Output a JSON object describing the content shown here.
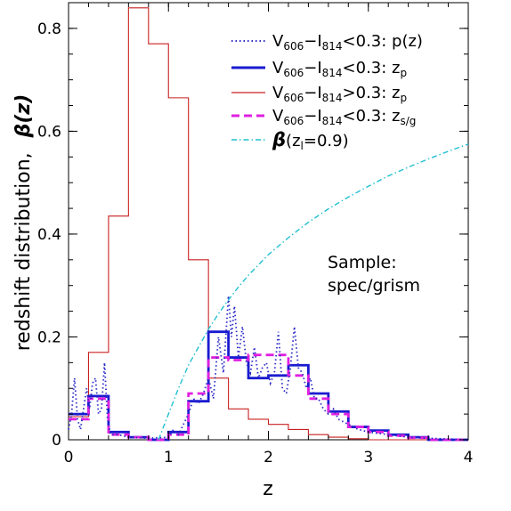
{
  "chart_data": {
    "type": "line",
    "xlabel": "z",
    "ylabel_text": "redshift distribution,",
    "ylabel_symbol": "β(z)",
    "xlim": [
      0,
      4
    ],
    "ylim": [
      0,
      0.85
    ],
    "x_ticks": [
      "0",
      "1",
      "2",
      "3",
      "4"
    ],
    "y_ticks": [
      "0",
      "0.2",
      "0.4",
      "0.6",
      "0.8"
    ],
    "x_tick_values": [
      0,
      1,
      2,
      3,
      4
    ],
    "y_tick_values": [
      0,
      0.2,
      0.4,
      0.6,
      0.8
    ],
    "grid": false,
    "legend_position": "top-right",
    "annotation": [
      "Sample:",
      "spec/grism"
    ],
    "series": [
      {
        "legend_main": "V606−I814<0.3:",
        "legend_var": "p(z)",
        "color": "#2a2ac8",
        "style": "dotted",
        "kind": "line",
        "points": [
          [
            0.0,
            0.02
          ],
          [
            0.03,
            0.05
          ],
          [
            0.06,
            0.12
          ],
          [
            0.09,
            0.04
          ],
          [
            0.12,
            0.02
          ],
          [
            0.15,
            0.06
          ],
          [
            0.18,
            0.1
          ],
          [
            0.21,
            0.06
          ],
          [
            0.24,
            0.11
          ],
          [
            0.27,
            0.12
          ],
          [
            0.3,
            0.05
          ],
          [
            0.33,
            0.06
          ],
          [
            0.36,
            0.15
          ],
          [
            0.39,
            0.04
          ],
          [
            0.42,
            0.01
          ],
          [
            0.5,
            0.01
          ],
          [
            0.6,
            0.005
          ],
          [
            0.8,
            0.003
          ],
          [
            1.0,
            0.005
          ],
          [
            1.05,
            0.02
          ],
          [
            1.1,
            0.01
          ],
          [
            1.15,
            0.03
          ],
          [
            1.2,
            0.05
          ],
          [
            1.25,
            0.08
          ],
          [
            1.3,
            0.07
          ],
          [
            1.35,
            0.09
          ],
          [
            1.4,
            0.12
          ],
          [
            1.45,
            0.08
          ],
          [
            1.5,
            0.2
          ],
          [
            1.55,
            0.13
          ],
          [
            1.6,
            0.28
          ],
          [
            1.63,
            0.2
          ],
          [
            1.66,
            0.26
          ],
          [
            1.7,
            0.16
          ],
          [
            1.74,
            0.22
          ],
          [
            1.78,
            0.15
          ],
          [
            1.82,
            0.13
          ],
          [
            1.86,
            0.18
          ],
          [
            1.9,
            0.12
          ],
          [
            1.94,
            0.14
          ],
          [
            1.98,
            0.15
          ],
          [
            2.02,
            0.11
          ],
          [
            2.06,
            0.13
          ],
          [
            2.1,
            0.21
          ],
          [
            2.14,
            0.1
          ],
          [
            2.18,
            0.09
          ],
          [
            2.22,
            0.14
          ],
          [
            2.26,
            0.22
          ],
          [
            2.3,
            0.14
          ],
          [
            2.34,
            0.13
          ],
          [
            2.38,
            0.1
          ],
          [
            2.42,
            0.12
          ],
          [
            2.46,
            0.08
          ],
          [
            2.5,
            0.08
          ],
          [
            2.55,
            0.06
          ],
          [
            2.6,
            0.05
          ],
          [
            2.65,
            0.06
          ],
          [
            2.7,
            0.04
          ],
          [
            2.8,
            0.03
          ],
          [
            2.9,
            0.02
          ],
          [
            3.0,
            0.015
          ],
          [
            3.2,
            0.01
          ],
          [
            3.4,
            0.005
          ],
          [
            3.6,
            0.003
          ],
          [
            4.0,
            0.0
          ]
        ]
      },
      {
        "legend_main": "V606−I814<0.3:",
        "legend_var": "z",
        "legend_sub": "p",
        "color": "#1a1ad0",
        "style": "solid-thick",
        "kind": "step",
        "edges": [
          0.0,
          0.2,
          0.4,
          0.6,
          0.8,
          1.0,
          1.2,
          1.4,
          1.6,
          1.8,
          2.0,
          2.2,
          2.4,
          2.6,
          2.8,
          3.0,
          3.2,
          3.4,
          3.6,
          3.8,
          4.0
        ],
        "values": [
          0.05,
          0.085,
          0.015,
          0.005,
          0.0,
          0.015,
          0.075,
          0.21,
          0.16,
          0.12,
          0.125,
          0.145,
          0.09,
          0.055,
          0.025,
          0.018,
          0.01,
          0.005,
          0.0,
          0.0
        ]
      },
      {
        "legend_main": "V606−I814>0.3:",
        "legend_var": "z",
        "legend_sub": "p",
        "color": "#c82020",
        "style": "solid-thin",
        "kind": "step",
        "edges": [
          0.0,
          0.2,
          0.4,
          0.6,
          0.8,
          1.0,
          1.2,
          1.4,
          1.6,
          1.8,
          2.0,
          2.2,
          2.4,
          2.6,
          2.8,
          3.0,
          3.2,
          3.4,
          3.6,
          3.8,
          4.0
        ],
        "values": [
          0.045,
          0.17,
          0.435,
          0.84,
          0.77,
          0.665,
          0.35,
          0.12,
          0.06,
          0.04,
          0.03,
          0.02,
          0.01,
          0.005,
          0.002,
          0.0,
          0.0,
          0.0,
          0.0,
          0.0
        ]
      },
      {
        "legend_main": "V606−I814<0.3:",
        "legend_var": "z",
        "legend_sub": "s/g",
        "color": "#e020e0",
        "style": "dashed",
        "kind": "step",
        "edges": [
          0.0,
          0.2,
          0.4,
          0.6,
          0.8,
          1.0,
          1.2,
          1.4,
          1.6,
          1.8,
          2.0,
          2.2,
          2.4,
          2.6,
          2.8,
          3.0,
          3.2,
          3.4,
          3.6,
          3.8,
          4.0
        ],
        "values": [
          0.04,
          0.08,
          0.01,
          0.005,
          0.0,
          0.01,
          0.09,
          0.16,
          0.155,
          0.165,
          0.165,
          0.125,
          0.08,
          0.05,
          0.025,
          0.015,
          0.008,
          0.004,
          0.0,
          0.0
        ]
      },
      {
        "legend_main": "β",
        "legend_var": "(z",
        "legend_sub": "l",
        "legend_tail": "=0.9)",
        "color": "#20c0d0",
        "style": "dashdot",
        "kind": "curve",
        "points": [
          [
            0.9,
            0.0
          ],
          [
            1.0,
            0.05
          ],
          [
            1.1,
            0.1
          ],
          [
            1.2,
            0.145
          ],
          [
            1.3,
            0.18
          ],
          [
            1.4,
            0.215
          ],
          [
            1.5,
            0.245
          ],
          [
            1.6,
            0.272
          ],
          [
            1.7,
            0.297
          ],
          [
            1.8,
            0.32
          ],
          [
            1.9,
            0.34
          ],
          [
            2.0,
            0.36
          ],
          [
            2.2,
            0.393
          ],
          [
            2.4,
            0.423
          ],
          [
            2.6,
            0.449
          ],
          [
            2.8,
            0.472
          ],
          [
            3.0,
            0.493
          ],
          [
            3.2,
            0.513
          ],
          [
            3.4,
            0.53
          ],
          [
            3.6,
            0.546
          ],
          [
            3.8,
            0.561
          ],
          [
            4.0,
            0.575
          ]
        ]
      }
    ]
  }
}
